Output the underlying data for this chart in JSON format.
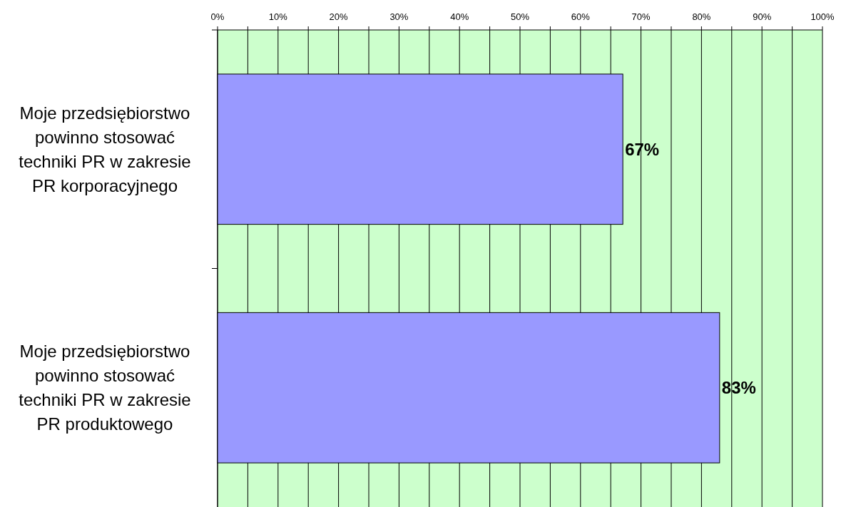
{
  "chart_data": {
    "type": "bar",
    "orientation": "horizontal",
    "categories": [
      "Moje przedsiębiorstwo powinno stosować techniki PR w zakresie PR korporacyjnego",
      "Moje przedsiębiorstwo powinno stosować techniki PR w zakresie PR produktowego"
    ],
    "values": [
      67,
      83
    ],
    "value_labels": [
      "67%",
      "83%"
    ],
    "color": "#9999ff",
    "xlim": [
      0,
      100
    ],
    "xticks": [
      {
        "value": 0,
        "label": "0%"
      },
      {
        "value": 5,
        "label": null
      },
      {
        "value": 10,
        "label": "10%"
      },
      {
        "value": 15,
        "label": null
      },
      {
        "value": 20,
        "label": "20%"
      },
      {
        "value": 25,
        "label": null
      },
      {
        "value": 30,
        "label": "30%"
      },
      {
        "value": 35,
        "label": null
      },
      {
        "value": 40,
        "label": "40%"
      },
      {
        "value": 45,
        "label": null
      },
      {
        "value": 50,
        "label": "50%"
      },
      {
        "value": 55,
        "label": null
      },
      {
        "value": 60,
        "label": "60%"
      },
      {
        "value": 65,
        "label": null
      },
      {
        "value": 70,
        "label": "70%"
      },
      {
        "value": 75,
        "label": null
      },
      {
        "value": 80,
        "label": "80%"
      },
      {
        "value": 85,
        "label": null
      },
      {
        "value": 90,
        "label": "90%"
      },
      {
        "value": 95,
        "label": null
      },
      {
        "value": 100,
        "label": "100%"
      }
    ],
    "grid": "x"
  }
}
